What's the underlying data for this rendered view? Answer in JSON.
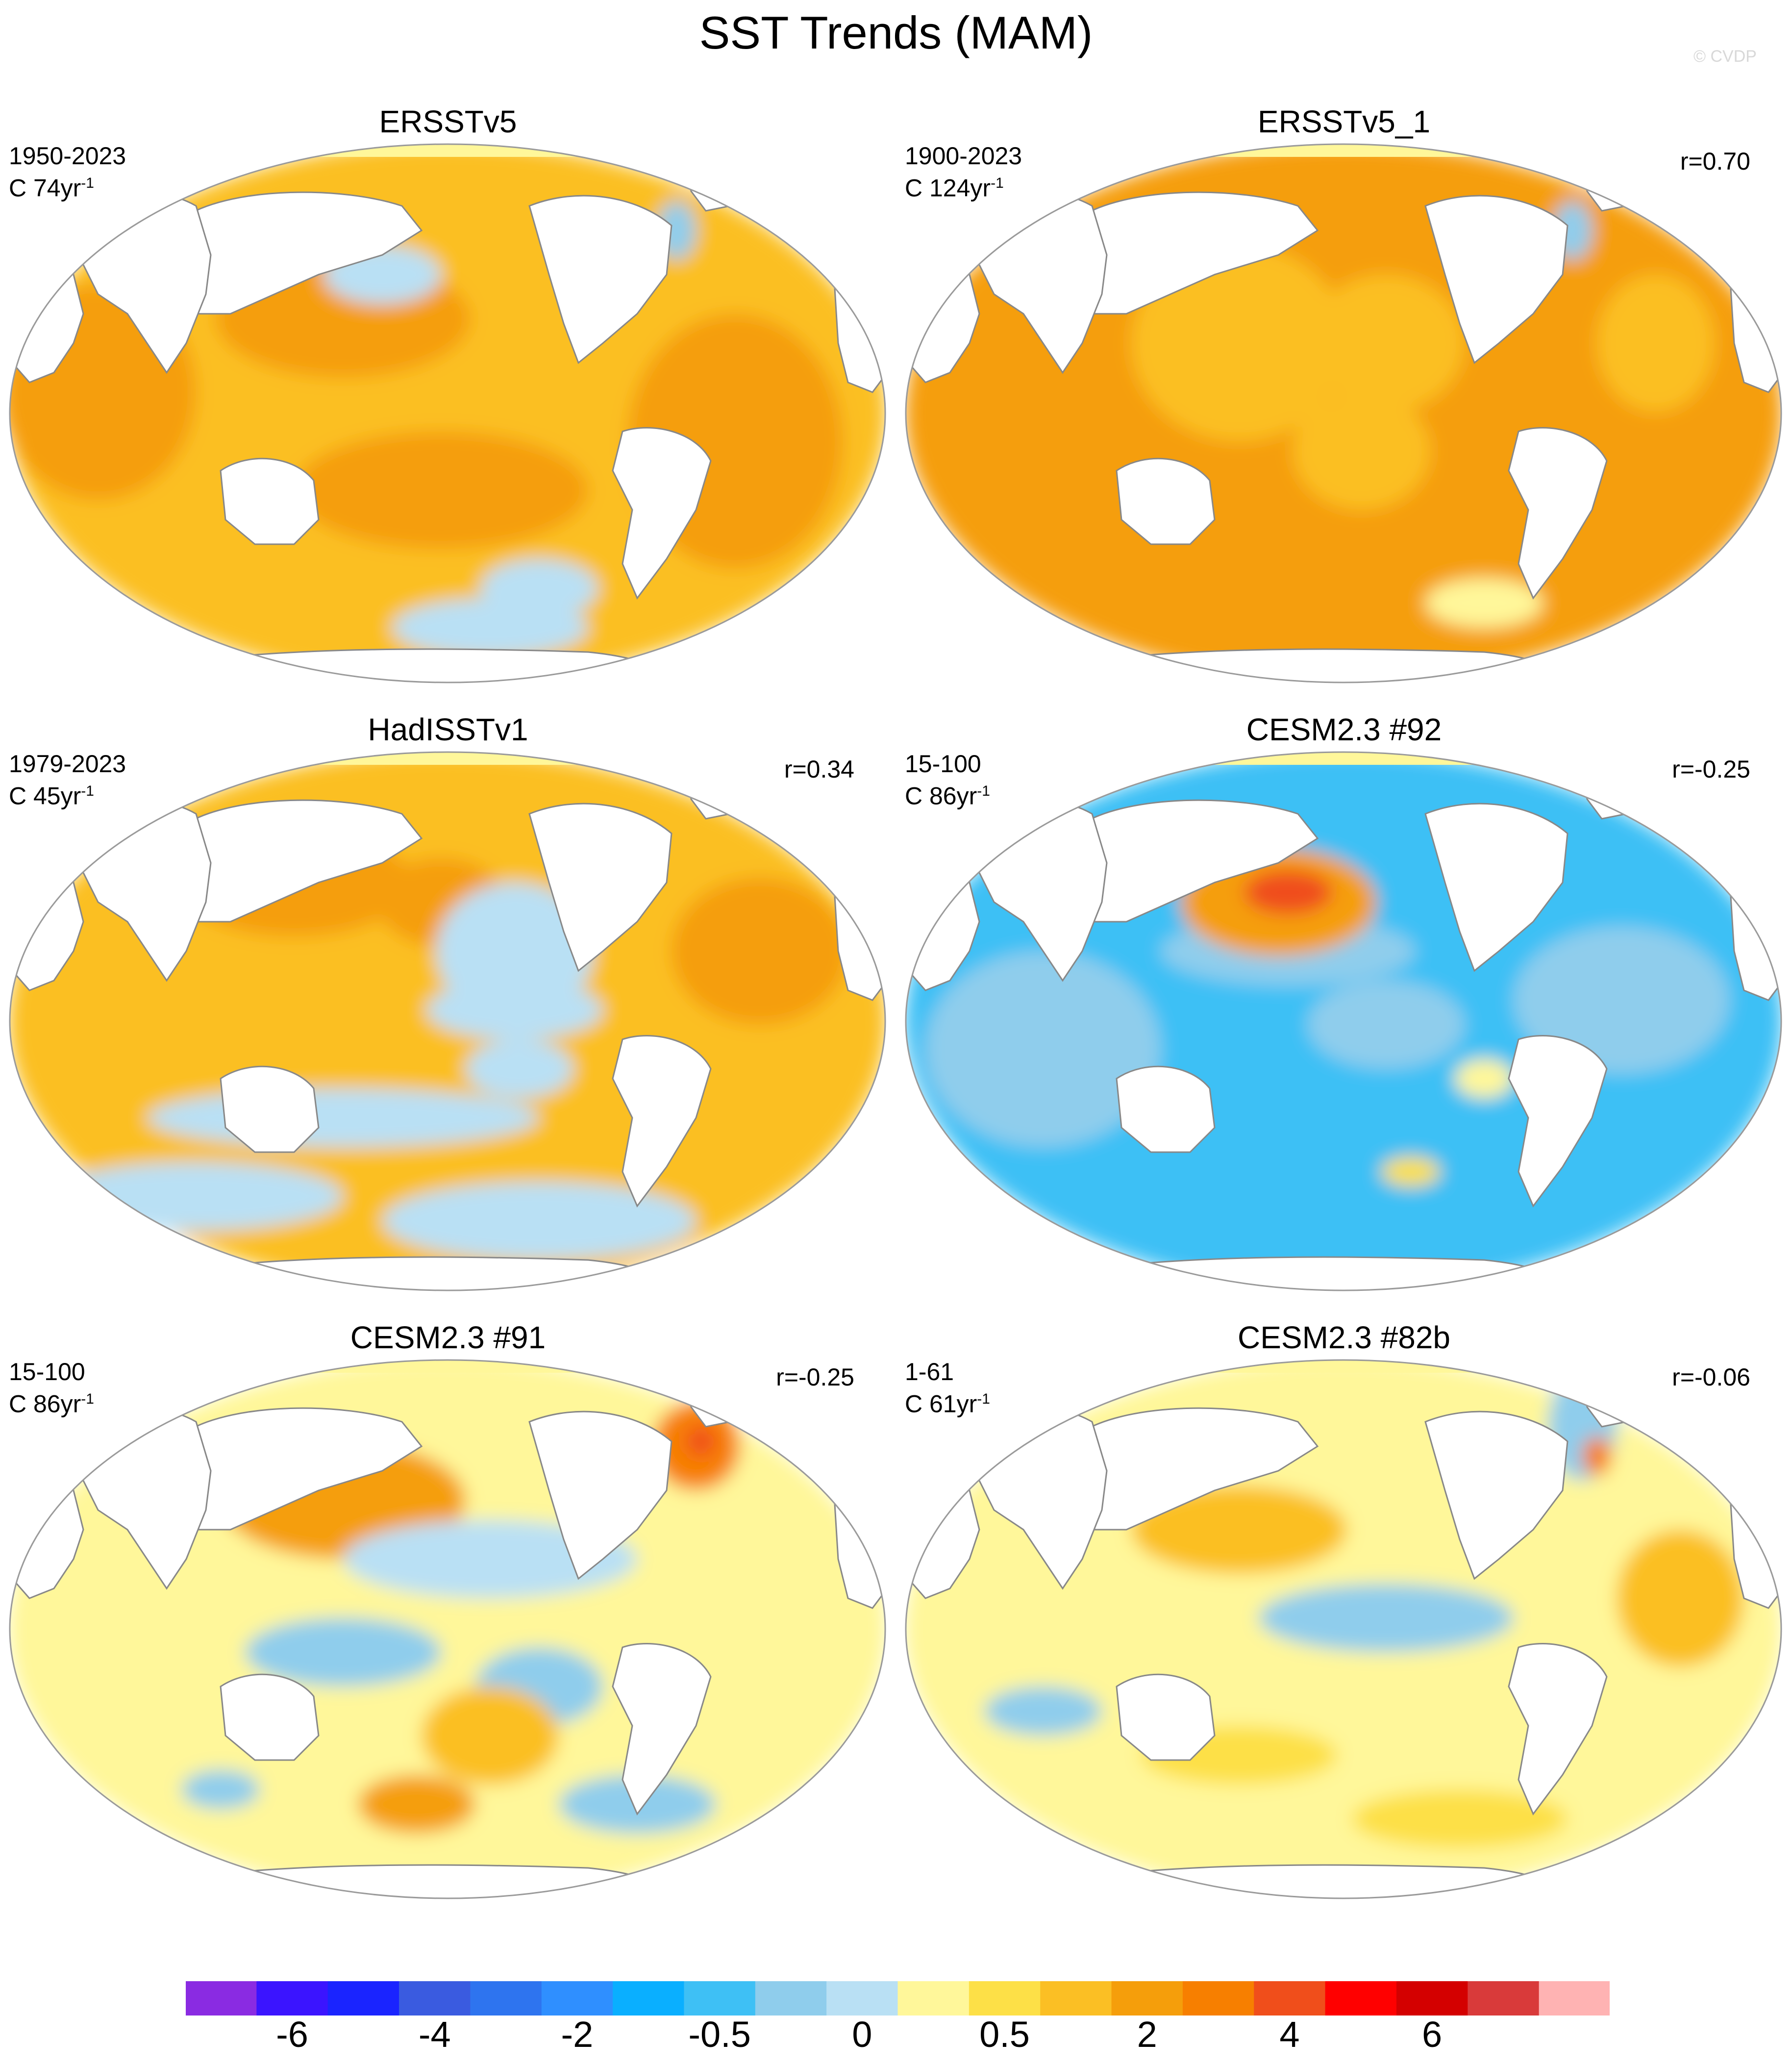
{
  "title": "SST Trends (MAM)",
  "watermark": "© CVDP",
  "panels": [
    {
      "title": "ERSSTv5",
      "period": "1950-2023",
      "length_prefix": "C 74yr",
      "length_exp": "-1",
      "corr": "",
      "pattern": "warm"
    },
    {
      "title": "ERSSTv5_1",
      "period": "1900-2023",
      "length_prefix": "C 124yr",
      "length_exp": "-1",
      "corr": "r=0.70",
      "pattern": "warm2"
    },
    {
      "title": "HadISSTv1",
      "period": "1979-2023",
      "length_prefix": "C 45yr",
      "length_exp": "-1",
      "corr": "r=0.34",
      "pattern": "mixed"
    },
    {
      "title": "CESM2.3 #92",
      "period": "15-100",
      "length_prefix": "C 86yr",
      "length_exp": "-1",
      "corr": "r=-0.25",
      "pattern": "cool"
    },
    {
      "title": "CESM2.3 #91",
      "period": "15-100",
      "length_prefix": "C 86yr",
      "length_exp": "-1",
      "corr": "r=-0.25",
      "pattern": "mixed2"
    },
    {
      "title": "CESM2.3 #82b",
      "period": "1-61",
      "length_prefix": "C 61yr",
      "length_exp": "-1",
      "corr": "r=-0.06",
      "pattern": "mixed3"
    }
  ],
  "colorbar": {
    "colors": [
      "#8a2be2",
      "#3b14ff",
      "#1a24ff",
      "#3a5be0",
      "#2e74ef",
      "#2f8fff",
      "#0aafff",
      "#3ec0f5",
      "#8fcdec",
      "#b9e0f4",
      "#fff79a",
      "#fde047",
      "#fbbf24",
      "#f59e0b",
      "#f77f00",
      "#f04e1b",
      "#ff0000",
      "#d40000",
      "#d93a3a",
      "#ffb3b3"
    ],
    "labels": [
      "-6",
      "-4",
      "-2",
      "-0.5",
      "0",
      "0.5",
      "2",
      "4",
      "6"
    ],
    "label_boundaries": [
      2,
      4,
      6,
      8,
      10,
      12,
      14,
      16,
      18
    ]
  },
  "map_colors": {
    "land": "#ffffff",
    "coast": "#888888",
    "arctic": "#fff79a"
  }
}
